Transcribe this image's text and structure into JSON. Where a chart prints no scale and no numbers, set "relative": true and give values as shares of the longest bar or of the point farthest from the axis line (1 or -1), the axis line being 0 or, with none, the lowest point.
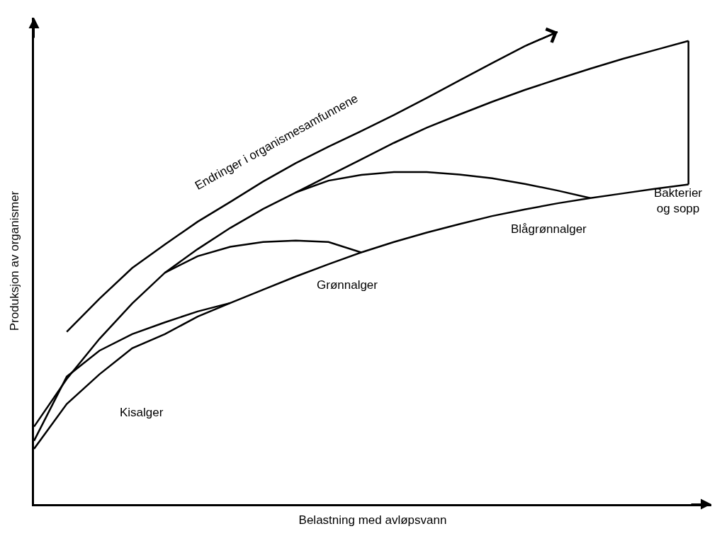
{
  "chart_data": {
    "type": "line",
    "relative": true,
    "xlabel": "Belastning med avløpsvann",
    "ylabel": "Produksjon av organismer",
    "tick_labels": false,
    "marker": "none",
    "line_style": "solid",
    "categories": [
      null,
      null,
      null,
      null,
      null,
      null,
      null,
      null,
      null,
      null,
      null,
      null,
      null,
      null,
      null,
      null,
      null,
      null,
      null,
      null,
      null
    ],
    "series": [
      {
        "color": "#000000",
        "values": [
          0.117,
          0.212,
          0.275,
          0.33,
          0.36,
          0.397,
          0.426,
          0.454,
          0.482,
          0.508,
          0.533,
          0.555,
          0.575,
          0.593,
          0.61,
          0.624,
          0.637,
          0.648,
          0.658,
          0.668,
          0.677
        ]
      },
      {
        "color": "#000000",
        "values": [
          0.164,
          0.265,
          0.35,
          0.425,
          0.49,
          0.54,
          0.585,
          0.625,
          0.66,
          0.695,
          0.73,
          0.765,
          0.797,
          0.825,
          0.852,
          0.877,
          0.9,
          0.922,
          0.943,
          0.962,
          0.981
        ]
      },
      {
        "color": "#000000",
        "values": [
          0.134,
          0.27,
          0.325,
          0.36,
          0.385,
          0.408,
          0.426,
          null,
          null,
          null,
          null,
          null,
          null,
          null,
          null,
          null,
          null,
          null,
          null,
          null,
          null
        ]
      },
      {
        "color": "#000000",
        "values": [
          null,
          null,
          null,
          null,
          0.49,
          0.525,
          0.545,
          0.555,
          0.558,
          0.555,
          0.533,
          null,
          null,
          null,
          null,
          null,
          null,
          null,
          null,
          null,
          null
        ]
      },
      {
        "color": "#000000",
        "values": [
          null,
          null,
          null,
          null,
          null,
          null,
          null,
          null,
          0.66,
          0.685,
          0.697,
          0.703,
          0.703,
          0.698,
          0.69,
          0.678,
          0.664,
          0.648,
          null,
          null,
          null
        ]
      },
      {
        "color": "#000000",
        "values": [
          null,
          0.365,
          0.435,
          0.5,
          0.55,
          0.598,
          0.64,
          0.683,
          0.722,
          0.757,
          0.79,
          0.824,
          0.86,
          0.897,
          0.934,
          0.97,
          1,
          null,
          null,
          null,
          null
        ]
      }
    ],
    "annotations": [
      "Kisalger",
      "Grønnalger",
      "Blågrønnalger",
      "Bakterier\nog sopp",
      "Endringer i organismesamfunnene"
    ]
  }
}
